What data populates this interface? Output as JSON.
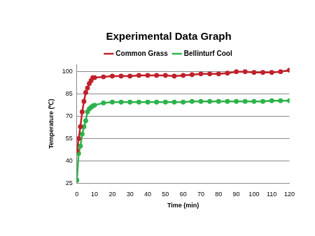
{
  "chart_data": {
    "type": "line",
    "title": "Experimental Data Graph",
    "x_label": "Time (min)",
    "y_label": "Temperature (℃)",
    "x": [
      0,
      1,
      2,
      3,
      4,
      5,
      6,
      7,
      8,
      9,
      10,
      15,
      20,
      25,
      30,
      35,
      40,
      45,
      50,
      55,
      60,
      65,
      70,
      75,
      80,
      85,
      90,
      95,
      100,
      105,
      110,
      115,
      120
    ],
    "series": [
      {
        "name": "Common Grass",
        "color": "#c0202a",
        "marker": "circle",
        "values": [
          47,
          55,
          63,
          73,
          80,
          86,
          89,
          92,
          94,
          96,
          96,
          96.5,
          97,
          97,
          97,
          97.5,
          97.5,
          97.5,
          97.5,
          97,
          97.5,
          98,
          98.5,
          98.5,
          98.5,
          99,
          100,
          100,
          99.5,
          99.5,
          99.5,
          100,
          101
        ]
      },
      {
        "name": "Bellinturf Cool",
        "color": "#2db34a",
        "marker": "circle",
        "values": [
          27,
          45,
          50,
          58,
          63,
          67,
          73,
          75,
          76,
          77,
          77.5,
          79,
          79.5,
          79.5,
          79.5,
          79.5,
          79.5,
          79.5,
          79.5,
          79.5,
          79.5,
          80,
          80,
          80,
          80,
          80,
          80,
          80,
          80,
          80,
          80.5,
          80.5,
          80.5
        ]
      }
    ],
    "xlim": [
      0,
      120
    ],
    "xticks": [
      0,
      10,
      20,
      30,
      40,
      50,
      60,
      70,
      80,
      90,
      100,
      110,
      120
    ],
    "ylim": [
      25,
      105
    ],
    "yticks": [
      25,
      40,
      55,
      70,
      85,
      100
    ],
    "grid": true,
    "legend": "top"
  }
}
